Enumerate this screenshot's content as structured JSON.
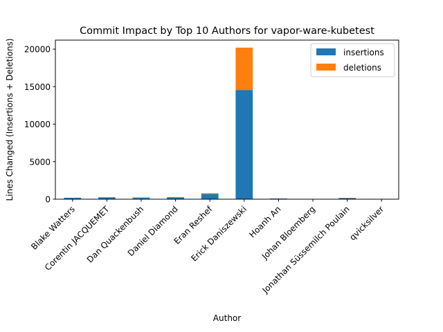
{
  "chart_data": {
    "type": "bar",
    "stacked": true,
    "title": "Commit Impact by Top 10 Authors for vapor-ware-kubetest",
    "xlabel": "Author",
    "ylabel": "Lines Changed (Insertions + Deletions)",
    "ylim": [
      0,
      21200
    ],
    "yticks": [
      0,
      5000,
      10000,
      15000,
      20000
    ],
    "categories": [
      "Blake Watters",
      "Corentin JACQUEMET",
      "Dan Quackenbush",
      "Daniel Diamond",
      "Eran Reshef",
      "Erick Daniszewski",
      "Hoanh An",
      "Johan Bloemberg",
      "Jonathan Süssemilch Poulain",
      "qvicksilver"
    ],
    "series": [
      {
        "name": "insertions",
        "color": "#1f77b4",
        "values": [
          180,
          230,
          170,
          240,
          700,
          14550,
          90,
          30,
          160,
          20
        ]
      },
      {
        "name": "deletions",
        "color": "#ff7f0e",
        "values": [
          20,
          30,
          80,
          30,
          100,
          5650,
          10,
          10,
          20,
          5
        ]
      }
    ],
    "legend_position": "top-right",
    "grid": false
  }
}
